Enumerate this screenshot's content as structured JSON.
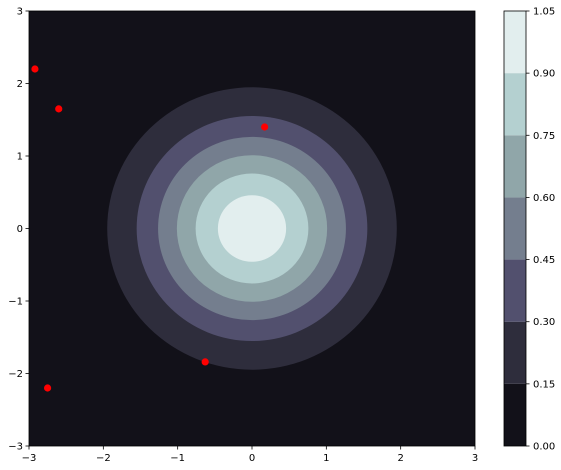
{
  "chart_data": {
    "type": "heatmap",
    "title": "",
    "xlabel": "",
    "ylabel": "",
    "xlim": [
      -3,
      3
    ],
    "ylim": [
      -3,
      3
    ],
    "x_ticks": [
      -3,
      -2,
      -1,
      0,
      1,
      2,
      3
    ],
    "y_ticks": [
      -3,
      -2,
      -1,
      0,
      1,
      2,
      3
    ],
    "x_tick_labels": [
      "−3",
      "−2",
      "−1",
      "0",
      "1",
      "2",
      "3"
    ],
    "y_tick_labels": [
      "−3",
      "−2",
      "−1",
      "0",
      "1",
      "2",
      "3"
    ],
    "grid": false,
    "contour": {
      "function": "exp(-(x^2 + y^2)/2)",
      "levels": [
        0.0,
        0.15,
        0.3,
        0.45,
        0.6,
        0.75,
        0.9,
        1.05
      ],
      "level_colors": [
        "#121119",
        "#2e2d3c",
        "#52506e",
        "#747e8e",
        "#90a6a9",
        "#b4d0d0",
        "#e2eeee"
      ]
    },
    "colorbar": {
      "ticks": [
        0.0,
        0.15,
        0.3,
        0.45,
        0.6,
        0.75,
        0.9,
        1.05
      ],
      "tick_labels": [
        "0.00",
        "0.15",
        "0.30",
        "0.45",
        "0.60",
        "0.75",
        "0.90",
        "1.05"
      ]
    },
    "scatter": {
      "color": "#ff0000",
      "points": [
        {
          "x": -2.92,
          "y": 2.2
        },
        {
          "x": -2.6,
          "y": 1.65
        },
        {
          "x": 0.17,
          "y": 1.4
        },
        {
          "x": -0.63,
          "y": -1.84
        },
        {
          "x": -2.75,
          "y": -2.2
        }
      ]
    }
  }
}
